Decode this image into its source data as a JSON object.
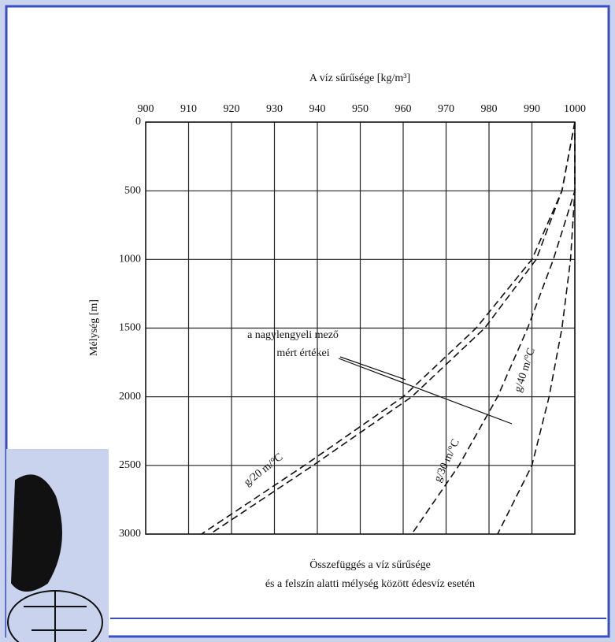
{
  "chart_data": {
    "type": "line",
    "title": "A víz sűrűsége [kg/m³]",
    "y_label": "Mélység [m]",
    "caption": [
      "Összefüggés a víz sűrűsége",
      "és a felszín alatti mélység között édesvíz esetén"
    ],
    "annotation": [
      "a nagylengyeli mező",
      "mért értékei"
    ],
    "y": [
      0,
      500,
      1000,
      1500,
      2000,
      2500,
      3000
    ],
    "series": [
      {
        "name": "g/20 m/°C",
        "color": "#111111",
        "values": [
          1000,
          997,
          990,
          977,
          960,
          937,
          913
        ]
      },
      {
        "name": null,
        "color": "#111111",
        "values": [
          1000,
          997,
          991,
          979,
          962,
          939,
          915
        ]
      },
      {
        "name": "g/30 m/°C",
        "color": "#111111",
        "values": [
          1000,
          1000,
          995,
          989,
          982,
          973,
          962
        ]
      },
      {
        "name": "g/40 m/°C",
        "color": "#111111",
        "values": [
          1000,
          1000,
          999,
          997,
          994,
          990,
          982
        ]
      }
    ],
    "xlim": [
      900,
      1000
    ],
    "xticks": [
      900,
      910,
      920,
      930,
      940,
      950,
      960,
      970,
      980,
      990,
      1000
    ],
    "ylim": [
      0,
      3000
    ],
    "yticks": [
      0,
      500,
      1000,
      1500,
      2000,
      2500,
      3000
    ],
    "y_inverted": true,
    "x_axis_top": true,
    "grid": true
  }
}
